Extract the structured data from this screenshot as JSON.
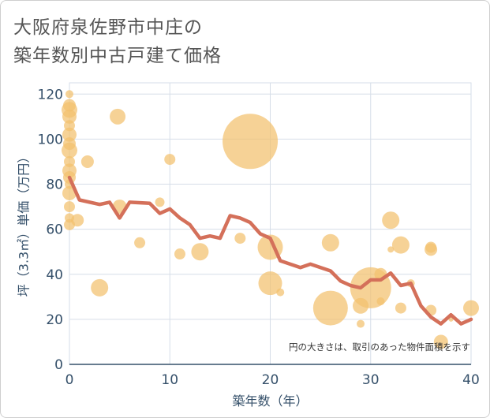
{
  "title_line1": "大阪府泉佐野市中庄の",
  "title_line2": "築年数別中古戸建て価格",
  "colors": {
    "bubble": "#f2c06e",
    "line": "#d4705a",
    "grid": "#d6dee8",
    "axis_text": "#35506a"
  },
  "chart_data": {
    "type": "scatter",
    "title": "大阪府泉佐野市中庄の築年数別中古戸建て価格",
    "xlabel": "築年数（年）",
    "ylabel": "坪（3.3㎡）単価（万円）",
    "xlim": [
      0,
      40
    ],
    "ylim": [
      0,
      125
    ],
    "xticks": [
      0,
      10,
      20,
      30,
      40
    ],
    "yticks": [
      0,
      20,
      40,
      60,
      80,
      100,
      120
    ],
    "note": "円の大きさは、取引のあった物件面積を示す",
    "points": [
      {
        "x": 0,
        "y": 120,
        "s": 5
      },
      {
        "x": 0,
        "y": 115,
        "s": 8
      },
      {
        "x": 0,
        "y": 113,
        "s": 10
      },
      {
        "x": 0,
        "y": 110,
        "s": 9
      },
      {
        "x": 0,
        "y": 106,
        "s": 7
      },
      {
        "x": 0,
        "y": 102,
        "s": 9
      },
      {
        "x": 0,
        "y": 98,
        "s": 8
      },
      {
        "x": 0,
        "y": 95,
        "s": 10
      },
      {
        "x": 0,
        "y": 90,
        "s": 7
      },
      {
        "x": 0,
        "y": 86,
        "s": 9
      },
      {
        "x": 0,
        "y": 83,
        "s": 8
      },
      {
        "x": 0,
        "y": 80,
        "s": 6
      },
      {
        "x": 0,
        "y": 76,
        "s": 9
      },
      {
        "x": 0,
        "y": 70,
        "s": 7
      },
      {
        "x": 0,
        "y": 65,
        "s": 6
      },
      {
        "x": 0,
        "y": 62,
        "s": 7
      },
      {
        "x": 0.8,
        "y": 64,
        "s": 8
      },
      {
        "x": 1.8,
        "y": 90,
        "s": 8
      },
      {
        "x": 3,
        "y": 34,
        "s": 11
      },
      {
        "x": 4.8,
        "y": 110,
        "s": 10
      },
      {
        "x": 5,
        "y": 70,
        "s": 9
      },
      {
        "x": 7,
        "y": 54,
        "s": 7
      },
      {
        "x": 9,
        "y": 72,
        "s": 6
      },
      {
        "x": 10,
        "y": 91,
        "s": 7
      },
      {
        "x": 11,
        "y": 49,
        "s": 7
      },
      {
        "x": 13,
        "y": 50,
        "s": 11
      },
      {
        "x": 17,
        "y": 56,
        "s": 7
      },
      {
        "x": 18,
        "y": 99,
        "s": 35
      },
      {
        "x": 20,
        "y": 52,
        "s": 16
      },
      {
        "x": 20,
        "y": 36,
        "s": 15
      },
      {
        "x": 21,
        "y": 32,
        "s": 5
      },
      {
        "x": 26,
        "y": 54,
        "s": 11
      },
      {
        "x": 26,
        "y": 25,
        "s": 22
      },
      {
        "x": 29,
        "y": 26,
        "s": 10
      },
      {
        "x": 29,
        "y": 18,
        "s": 5
      },
      {
        "x": 30,
        "y": 34,
        "s": 26
      },
      {
        "x": 31,
        "y": 40,
        "s": 8
      },
      {
        "x": 31,
        "y": 28,
        "s": 5
      },
      {
        "x": 32,
        "y": 64,
        "s": 11
      },
      {
        "x": 32,
        "y": 51,
        "s": 4
      },
      {
        "x": 33,
        "y": 53,
        "s": 11
      },
      {
        "x": 33,
        "y": 25,
        "s": 7
      },
      {
        "x": 34,
        "y": 36,
        "s": 5
      },
      {
        "x": 36,
        "y": 52,
        "s": 7
      },
      {
        "x": 36,
        "y": 51,
        "s": 8
      },
      {
        "x": 36,
        "y": 24,
        "s": 7
      },
      {
        "x": 37,
        "y": 10,
        "s": 9
      },
      {
        "x": 38,
        "y": 20,
        "s": 3
      },
      {
        "x": 40,
        "y": 25,
        "s": 10
      }
    ],
    "trend_line": {
      "x": [
        0,
        1,
        3,
        4,
        5,
        6,
        8,
        9,
        10,
        11,
        12,
        13,
        14,
        15,
        16,
        17,
        18,
        19,
        20,
        21,
        23,
        24,
        26,
        27,
        28,
        29,
        30,
        31,
        32,
        33,
        34,
        35,
        36,
        37,
        38,
        39,
        40
      ],
      "y": [
        83,
        73,
        71,
        72,
        65,
        72,
        71.5,
        67,
        69,
        65,
        62,
        56,
        57,
        56,
        66,
        65,
        63,
        58,
        56,
        46,
        43,
        44.5,
        41.5,
        37,
        35,
        34,
        37.5,
        37.5,
        40.5,
        35,
        36,
        26,
        21,
        18,
        22,
        18,
        20
      ]
    }
  }
}
